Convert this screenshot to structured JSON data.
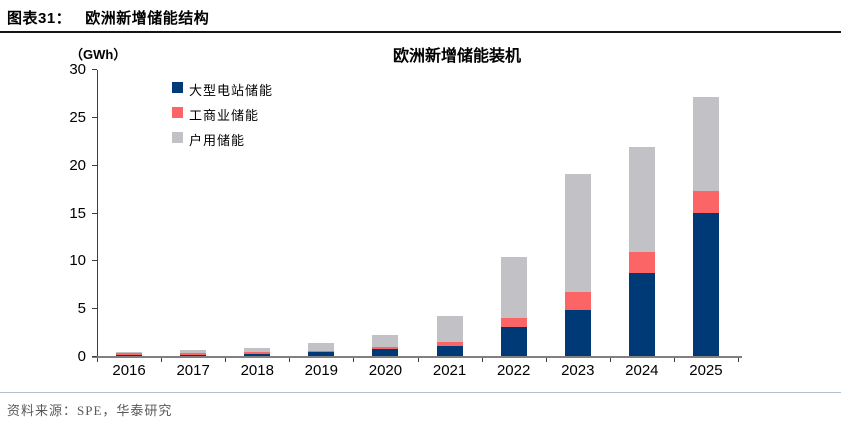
{
  "header": {
    "label": "图表31：",
    "title": "欧洲新增储能结构"
  },
  "chart_data": {
    "type": "bar",
    "stacked": true,
    "title": "欧洲新增储能装机",
    "unit_label": "（GWh）",
    "categories": [
      "2016",
      "2017",
      "2018",
      "2019",
      "2020",
      "2021",
      "2022",
      "2023",
      "2024",
      "2025"
    ],
    "series": [
      {
        "name": "大型电站储能",
        "color": "#003a76",
        "values": [
          0.1,
          0.1,
          0.2,
          0.4,
          0.7,
          1.0,
          3.0,
          4.8,
          8.7,
          14.9
        ]
      },
      {
        "name": "工商业储能",
        "color": "#fb6565",
        "values": [
          0.25,
          0.2,
          0.2,
          0.15,
          0.25,
          0.5,
          1.0,
          1.9,
          2.2,
          2.3
        ]
      },
      {
        "name": "户用储能",
        "color": "#c2c2c6",
        "values": [
          0.05,
          0.3,
          0.45,
          0.8,
          1.25,
          2.7,
          6.4,
          12.3,
          10.9,
          9.9
        ]
      }
    ],
    "totals": [
      0.4,
      0.6,
      0.85,
      1.35,
      2.2,
      4.2,
      10.4,
      19.0,
      21.8,
      27.1
    ],
    "ylim": [
      0,
      30
    ],
    "yticks": [
      0,
      5,
      10,
      15,
      20,
      25,
      30
    ],
    "legend_position": "top-left",
    "grid": false,
    "axis_color": "#3f3f3f",
    "baseline_color": "#808080"
  },
  "footer": {
    "source": "资料来源：SPE，华泰研究"
  }
}
